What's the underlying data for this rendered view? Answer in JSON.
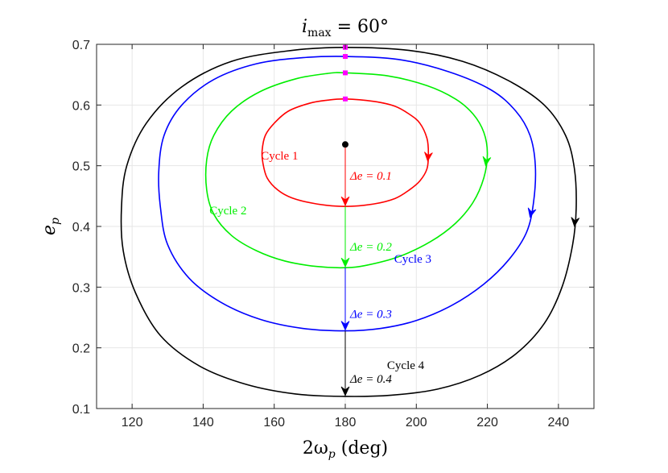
{
  "chart_data": {
    "type": "line",
    "title": "i_max = 60°",
    "title_parts": {
      "base": "i",
      "sub": "max",
      "rest": " = 60°"
    },
    "xlabel": "2ω_p (deg)",
    "xlabel_parts": {
      "lead": "2ω",
      "sub": "p",
      "rest": " (deg)"
    },
    "ylabel": "e_p",
    "ylabel_parts": {
      "base": "e",
      "sub": "p"
    },
    "xlim": [
      110,
      250
    ],
    "ylim": [
      0.1,
      0.7
    ],
    "xticks": [
      120,
      140,
      160,
      180,
      200,
      220,
      240
    ],
    "yticks": [
      0.1,
      0.2,
      0.3,
      0.4,
      0.5,
      0.6,
      0.7
    ],
    "grid": true,
    "center_point": {
      "x": 180,
      "y": 0.535,
      "color": "#000000"
    },
    "series": [
      {
        "label": "Cycle 1",
        "color": "#ff0000",
        "delta_label": "Δe = 0.1",
        "x": [
          180,
          188,
          194,
          198,
          201,
          203,
          203.4,
          203,
          201,
          198,
          194,
          188,
          180,
          172,
          165,
          161,
          158,
          156.8,
          156.6,
          157.5,
          160,
          164,
          170,
          175,
          180
        ],
        "y": [
          0.61,
          0.606,
          0.598,
          0.585,
          0.57,
          0.545,
          0.52,
          0.495,
          0.475,
          0.46,
          0.446,
          0.437,
          0.433,
          0.437,
          0.447,
          0.46,
          0.48,
          0.505,
          0.525,
          0.55,
          0.57,
          0.59,
          0.603,
          0.608,
          0.61
        ]
      },
      {
        "label": "Cycle 2",
        "color": "#00ee00",
        "delta_label": "Δe = 0.2",
        "x": [
          180,
          192,
          203,
          211,
          216,
          219,
          220,
          219,
          216,
          211,
          204,
          195,
          186,
          180,
          172,
          163,
          155,
          148,
          143,
          141,
          141,
          143,
          148,
          156,
          166,
          175,
          180
        ],
        "y": [
          0.653,
          0.648,
          0.632,
          0.61,
          0.585,
          0.555,
          0.52,
          0.48,
          0.44,
          0.405,
          0.375,
          0.35,
          0.336,
          0.332,
          0.334,
          0.343,
          0.36,
          0.385,
          0.42,
          0.46,
          0.51,
          0.55,
          0.59,
          0.622,
          0.643,
          0.652,
          0.653
        ]
      },
      {
        "label": "Cycle 3",
        "color": "#0000ff",
        "delta_label": "Δe = 0.3",
        "x": [
          180,
          195,
          209,
          221,
          228,
          232,
          233.5,
          233,
          231,
          226,
          219,
          210,
          200,
          190,
          180,
          168,
          156,
          145,
          136,
          130,
          128,
          127.5,
          129,
          134,
          143,
          155,
          168,
          180
        ],
        "y": [
          0.68,
          0.675,
          0.655,
          0.625,
          0.59,
          0.55,
          0.5,
          0.44,
          0.39,
          0.345,
          0.305,
          0.27,
          0.245,
          0.232,
          0.228,
          0.232,
          0.247,
          0.275,
          0.315,
          0.37,
          0.43,
          0.49,
          0.55,
          0.6,
          0.642,
          0.668,
          0.678,
          0.68
        ]
      },
      {
        "label": "Cycle 4",
        "color": "#000000",
        "delta_label": "Δe = 0.4",
        "x": [
          180,
          198,
          213,
          226,
          236,
          242,
          244.5,
          245,
          244,
          241,
          236,
          228,
          218,
          206,
          193,
          180,
          166,
          152,
          139,
          128,
          121,
          117.5,
          117,
          118.5,
          124,
          134,
          148,
          165,
          180
        ],
        "y": [
          0.695,
          0.69,
          0.672,
          0.64,
          0.6,
          0.55,
          0.495,
          0.43,
          0.37,
          0.3,
          0.24,
          0.19,
          0.155,
          0.132,
          0.122,
          0.12,
          0.124,
          0.14,
          0.17,
          0.22,
          0.29,
          0.36,
          0.43,
          0.5,
          0.57,
          0.63,
          0.672,
          0.69,
          0.695
        ]
      }
    ],
    "start_marker_color": "#ff00ff"
  }
}
